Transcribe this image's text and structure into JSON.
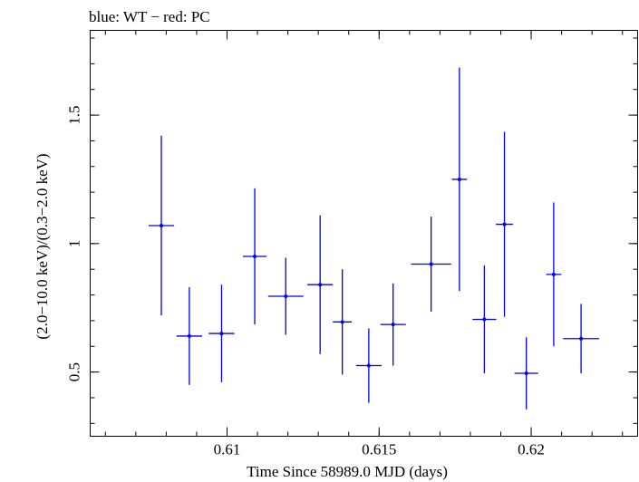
{
  "chart_data": {
    "type": "scatter",
    "title": "blue: WT − red: PC",
    "xlabel": "Time Since 58989.0 MJD (days)",
    "ylabel": "(2.0−10.0 keV)/(0.3−2.0 keV)",
    "xlim": [
      0.6055,
      0.6235
    ],
    "ylim": [
      0.25,
      1.83
    ],
    "x_ticks": [
      {
        "value": 0.61,
        "label": "0.61"
      },
      {
        "value": 0.615,
        "label": "0.615"
      },
      {
        "value": 0.62,
        "label": "0.62"
      }
    ],
    "y_ticks": [
      {
        "value": 0.5,
        "label": "0.5"
      },
      {
        "value": 1,
        "label": "1"
      },
      {
        "value": 1.5,
        "label": "1.5"
      }
    ],
    "x_minor_step": 0.001,
    "y_minor_step": 0.1,
    "grid": false,
    "series": [
      {
        "color": "#0000ee",
        "points": [
          {
            "x": 0.60784,
            "xerr": 0.00042,
            "y": 1.07,
            "yerr_low": 0.35,
            "yerr_high": 0.35
          },
          {
            "x": 0.60876,
            "xerr": 0.00042,
            "y": 0.64,
            "yerr_low": 0.19,
            "yerr_high": 0.19
          },
          {
            "x": 0.60982,
            "xerr": 0.00042,
            "y": 0.65,
            "yerr_low": 0.19,
            "yerr_high": 0.19
          },
          {
            "x": 0.61091,
            "xerr": 0.00039,
            "y": 0.95,
            "yerr_low": 0.265,
            "yerr_high": 0.265
          },
          {
            "x": 0.61193,
            "xerr": 0.00058,
            "y": 0.795,
            "yerr_low": 0.15,
            "yerr_high": 0.15
          },
          {
            "x": 0.61306,
            "xerr": 0.00042,
            "y": 0.84,
            "yerr_low": 0.27,
            "yerr_high": 0.27
          },
          {
            "x": 0.61379,
            "xerr": 0.00031,
            "y": 0.695,
            "yerr_low": 0.205,
            "yerr_high": 0.205
          },
          {
            "x": 0.61466,
            "xerr": 0.00042,
            "y": 0.525,
            "yerr_low": 0.145,
            "yerr_high": 0.145
          },
          {
            "x": 0.61546,
            "xerr": 0.00042,
            "y": 0.685,
            "yerr_low": 0.16,
            "yerr_high": 0.16
          },
          {
            "x": 0.61671,
            "xerr": 0.00066,
            "y": 0.92,
            "yerr_low": 0.185,
            "yerr_high": 0.185
          },
          {
            "x": 0.61764,
            "xerr": 0.00025,
            "y": 1.25,
            "yerr_low": 0.435,
            "yerr_high": 0.435
          },
          {
            "x": 0.61846,
            "xerr": 0.00039,
            "y": 0.705,
            "yerr_low": 0.21,
            "yerr_high": 0.21
          },
          {
            "x": 0.61912,
            "xerr": 0.00028,
            "y": 1.075,
            "yerr_low": 0.36,
            "yerr_high": 0.36
          },
          {
            "x": 0.61984,
            "xerr": 0.00039,
            "y": 0.495,
            "yerr_low": 0.14,
            "yerr_high": 0.14
          },
          {
            "x": 0.62074,
            "xerr": 0.00025,
            "y": 0.88,
            "yerr_low": 0.28,
            "yerr_high": 0.28
          },
          {
            "x": 0.62164,
            "xerr": 0.00059,
            "y": 0.63,
            "yerr_low": 0.135,
            "yerr_high": 0.135
          }
        ]
      }
    ]
  }
}
